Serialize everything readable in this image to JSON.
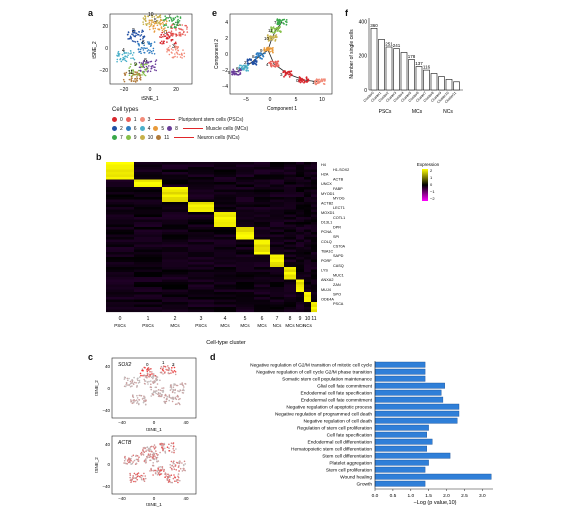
{
  "labels": {
    "a": "a",
    "b": "b",
    "c": "c",
    "d": "d",
    "e": "e",
    "f": "f"
  },
  "panel_a": {
    "xlabel": "tSNE_1",
    "ylabel": "tSNE_2",
    "xticks": [
      "−20",
      "0",
      "20"
    ],
    "yticks": [
      "20",
      "0",
      "−20"
    ],
    "cluster_labels": [
      "0",
      "1",
      "2",
      "3",
      "4",
      "5",
      "6",
      "7",
      "8",
      "9",
      "10",
      "11"
    ]
  },
  "legend": {
    "title": "Cell types",
    "rows": [
      {
        "items": [
          "0",
          "1",
          "3"
        ],
        "colors": [
          "#d7262c",
          "#e8605a",
          "#f28c7a"
        ],
        "label": "Pluripotent stem cells (PSCs)"
      },
      {
        "items": [
          "2",
          "6",
          "4",
          "5",
          "8"
        ],
        "colors": [
          "#1f4ea3",
          "#2e7cc1",
          "#4ab0c9",
          "#e89a3a",
          "#6a3d9a"
        ],
        "label": "Muscle cells (MCs)"
      },
      {
        "items": [
          "7",
          "9",
          "10",
          "11"
        ],
        "colors": [
          "#39a84a",
          "#86c04a",
          "#c7b14a",
          "#b07a3a"
        ],
        "label": "Neuron cells (NCs)"
      }
    ]
  },
  "panel_e": {
    "xlabel": "Component 1",
    "ylabel": "Component 2",
    "xticks": [
      "−5",
      "0",
      "5",
      "10"
    ],
    "yticks": [
      "4",
      "2",
      "0",
      "−2",
      "−4"
    ]
  },
  "panel_f": {
    "ylabel": "Number of single cells",
    "yticks": [
      "0",
      "200",
      "400"
    ],
    "groups": [
      "PSCs",
      "MCs",
      "NCs"
    ],
    "chart_data": {
      "type": "bar",
      "categories": [
        "Cluster0",
        "Cluster1",
        "Cluster2",
        "Cluster3",
        "Cluster4",
        "Cluster5",
        "Cluster6",
        "Cluster7",
        "Cluster8",
        "Cluster9",
        "Cluster10",
        "Cluster11"
      ],
      "values": [
        360,
        295,
        251,
        241,
        219,
        178,
        137,
        116,
        96,
        78,
        62,
        48
      ],
      "labels_shown": [
        "360",
        "",
        "251",
        "241",
        "",
        "178",
        "137",
        "116",
        "",
        "",
        "",
        ""
      ],
      "ylim": [
        0,
        420
      ]
    }
  },
  "panel_b": {
    "xlabel": "Cell-type cluster",
    "cluster_ticks": [
      "0",
      "1",
      "2",
      "3",
      "4",
      "5",
      "6",
      "7",
      "8",
      "9",
      "10",
      "11"
    ],
    "cluster_types": [
      "PSCs",
      "PSCs",
      "MCs",
      "PSCs",
      "MCs",
      "MCs",
      "MCs",
      "NCs",
      "MCs",
      "NCs",
      "NCs",
      ""
    ],
    "legend_title": "Expression",
    "legend_ticks": [
      "2",
      "1",
      "0",
      "−1",
      "−2"
    ],
    "genes": [
      "H4",
      "H1-SOX2",
      "H2A",
      "ACTB",
      "UNCX",
      "FABP",
      "MYOD1",
      "MYOG",
      "ACTB2",
      "LECT1",
      "MOXD1",
      "COTL1",
      "D13L1",
      "DPR",
      "PCNA",
      "SPI",
      "COLQ",
      "CS70A",
      "TBA1C",
      "SAPD",
      "PORF",
      "CASQ",
      "LYS",
      "MUC1",
      "ANXA2",
      "ZAN",
      "MUJ4",
      "SPO",
      "ODE4A",
      "PSCA"
    ]
  },
  "panel_c": {
    "gene1": "SOX2",
    "gene2": "ACTB",
    "xlabel": "tSNE_1",
    "ylabel": "tSNE_2",
    "xticks": [
      "−40",
      "0",
      "40"
    ],
    "yticks": [
      "40",
      "0",
      "−40"
    ],
    "cluster_labels": [
      "0",
      "1",
      "3"
    ]
  },
  "panel_d": {
    "xlabel": "−Log (p value,10)",
    "chart_data": {
      "type": "bar",
      "categories": [
        "Negative regulation of G2/M transition of mitotic cell cycle",
        "Negative regulation of cell cycle G2/M phase transition",
        "Somatic stem cell population maintenance",
        "Glial cell fate commitment",
        "Endodermal cell fate specification",
        "Endodermal cell fate commitment",
        "Negative regulation of apoptotic process",
        "Negative regulation of programmed cell death",
        "Negative regulation of cell death",
        "Regulation of stem cell proliferation",
        "Cell fate specification",
        "Endodermal cell differentiation",
        "Hematopoietic stem cell differentiation",
        "Stem cell differentiation",
        "Platelet aggregation",
        "Stem cell proliferation",
        "Wound healing",
        "Growth"
      ],
      "values": [
        1.4,
        1.4,
        1.4,
        1.95,
        1.85,
        1.9,
        2.35,
        2.35,
        2.3,
        1.5,
        1.45,
        1.6,
        1.45,
        2.1,
        1.5,
        1.4,
        3.25,
        1.4
      ],
      "xticks": [
        "0.0",
        "0.5",
        "1.0",
        "1.5",
        "2.0",
        "2.5",
        "3.0"
      ],
      "xlim": [
        0,
        3.3
      ],
      "color": "#2f7fd8"
    }
  }
}
